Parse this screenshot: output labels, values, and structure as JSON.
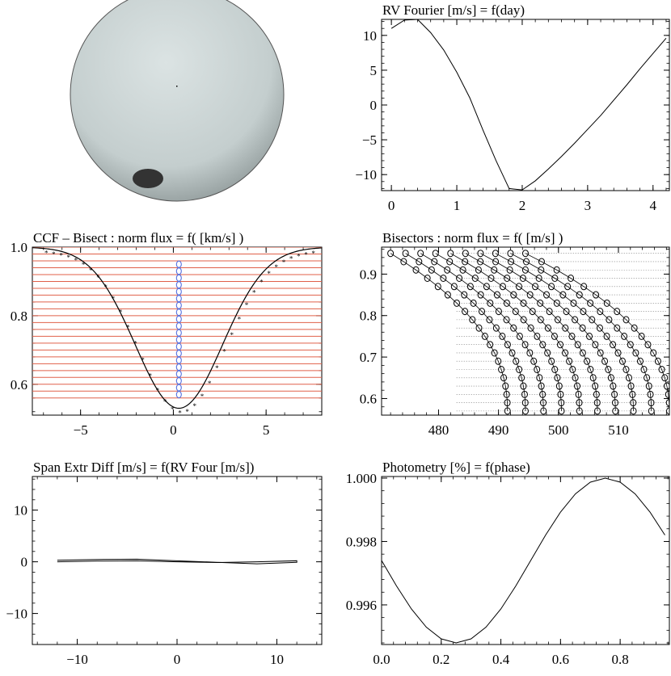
{
  "star": {
    "disk_color": "#c9d3d3",
    "spot_color": "#333333"
  },
  "chart_data": [
    {
      "id": "rv",
      "type": "line",
      "title": "RV Fourier [m/s] = f(day)",
      "xlim": [
        -0.15,
        4.25
      ],
      "ylim": [
        -12.3,
        12.3
      ],
      "xticks": [
        0,
        1,
        2,
        3,
        4
      ],
      "yticks": [
        -10,
        -5,
        0,
        5,
        10
      ],
      "xtick_labels": [
        "0",
        "1",
        "2",
        "3",
        "4"
      ],
      "ytick_labels": [
        "−10",
        "−5",
        "0",
        "5",
        "10"
      ],
      "x": [
        0.0,
        0.2,
        0.4,
        0.6,
        0.8,
        1.0,
        1.2,
        1.4,
        1.6,
        1.8,
        2.0,
        2.2,
        2.4,
        2.6,
        2.8,
        3.0,
        3.2,
        3.4,
        3.6,
        3.8,
        4.0,
        4.2
      ],
      "y": [
        11.0,
        12.2,
        12.3,
        10.4,
        7.9,
        4.7,
        1.0,
        -3.6,
        -8.0,
        -12.0,
        -12.2,
        -10.9,
        -9.2,
        -7.4,
        -5.5,
        -3.5,
        -1.5,
        0.7,
        2.9,
        5.2,
        7.4,
        9.6
      ],
      "line_color": "#000000"
    },
    {
      "id": "ccf",
      "type": "line",
      "title": "CCF – Bisect : norm flux = f( [km/s] )",
      "xlim": [
        -7.6,
        8.0
      ],
      "ylim": [
        0.51,
        1.0
      ],
      "xticks": [
        -5,
        0,
        5
      ],
      "yticks": [
        0.6,
        0.8,
        1.0
      ],
      "xtick_labels": [
        "−5",
        "0",
        "5"
      ],
      "ytick_labels": [
        "0.6",
        "0.8",
        "1.0"
      ],
      "profile": {
        "center": 0.3,
        "depth": 0.47,
        "sigma": 2.35
      },
      "bisector_x": 0.3,
      "bisector_levels": [
        0.57,
        0.59,
        0.61,
        0.63,
        0.65,
        0.67,
        0.69,
        0.71,
        0.73,
        0.75,
        0.77,
        0.79,
        0.81,
        0.83,
        0.85,
        0.87,
        0.89,
        0.91,
        0.93,
        0.95
      ],
      "red_lines": [
        0.56,
        0.58,
        0.6,
        0.62,
        0.64,
        0.66,
        0.68,
        0.7,
        0.72,
        0.74,
        0.76,
        0.78,
        0.8,
        0.82,
        0.84,
        0.86,
        0.88,
        0.9,
        0.92,
        0.94,
        0.96,
        0.98,
        1.0
      ],
      "line_color": "#000000",
      "grid_color": "#e0604a",
      "bisector_color": "#5570e0"
    },
    {
      "id": "bis",
      "type": "scatter",
      "title": "Bisectors : norm flux = f( [m/s] )",
      "xlim": [
        470.5,
        518.5
      ],
      "ylim": [
        0.56,
        0.965
      ],
      "xticks": [
        480,
        490,
        500,
        510
      ],
      "yticks": [
        0.6,
        0.7,
        0.8,
        0.9
      ],
      "xtick_labels": [
        "480",
        "490",
        "500",
        "510"
      ],
      "ytick_labels": [
        "0.6",
        "0.7",
        "0.8",
        "0.9"
      ],
      "top_offsets": [
        472,
        474.5,
        477,
        479.5,
        482,
        484.5,
        487,
        489.5,
        492,
        494.5
      ],
      "spacing_bottom": 3.0,
      "bottom_start": 491.5,
      "levels": [
        0.57,
        0.59,
        0.61,
        0.63,
        0.65,
        0.67,
        0.69,
        0.71,
        0.73,
        0.75,
        0.77,
        0.79,
        0.81,
        0.83,
        0.85,
        0.87,
        0.89,
        0.91,
        0.93,
        0.95
      ],
      "marker_color": "#000000"
    },
    {
      "id": "span",
      "type": "line",
      "title": "Span Extr Diff [m/s] = f(RV Four [m/s])",
      "xlim": [
        -14.5,
        14.5
      ],
      "ylim": [
        -16,
        16.5
      ],
      "xticks": [
        -10,
        0,
        10
      ],
      "yticks": [
        -10,
        0,
        10
      ],
      "xtick_labels": [
        "−10",
        "0",
        "10"
      ],
      "ytick_labels": [
        "−10",
        "0",
        "10"
      ],
      "x": [
        -12.0,
        -8.0,
        -4.0,
        0.0,
        4.0,
        8.0,
        12.0,
        12.0,
        8.0,
        4.0,
        0.0,
        -4.0,
        -8.0,
        -12.0
      ],
      "y": [
        0.3,
        0.45,
        0.5,
        0.2,
        -0.1,
        -0.4,
        -0.1,
        0.2,
        0.0,
        -0.15,
        0.0,
        0.2,
        0.15,
        0.0
      ],
      "line_color": "#000000"
    },
    {
      "id": "phot",
      "type": "line",
      "title": "Photometry [%] = f(phase)",
      "xlim": [
        0.0,
        0.965
      ],
      "ylim": [
        0.99475,
        1.00005
      ],
      "xticks": [
        0.0,
        0.2,
        0.4,
        0.6,
        0.8
      ],
      "yticks": [
        0.996,
        0.998,
        1.0
      ],
      "xtick_labels": [
        "0.0",
        "0.2",
        "0.4",
        "0.6",
        "0.8"
      ],
      "ytick_labels": [
        "0.996",
        "0.998",
        "1.000"
      ],
      "amplitude": 0.0026,
      "mean": 0.9974,
      "line_color": "#000000"
    }
  ]
}
